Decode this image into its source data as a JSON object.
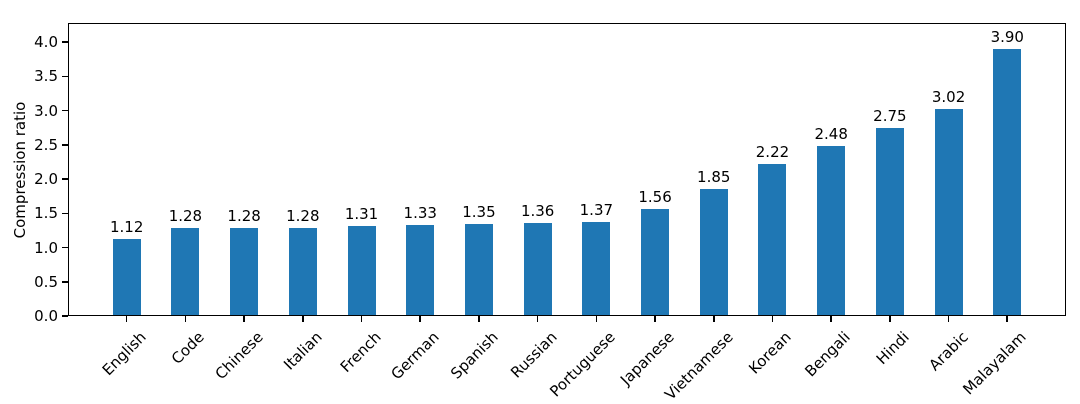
{
  "chart_data": {
    "type": "bar",
    "title": "",
    "xlabel": "",
    "ylabel": "Compression ratio",
    "categories": [
      "English",
      "Code",
      "Chinese",
      "Italian",
      "French",
      "German",
      "Spanish",
      "Russian",
      "Portuguese",
      "Japanese",
      "Vietnamese",
      "Korean",
      "Bengali",
      "Hindi",
      "Arabic",
      "Malayalam"
    ],
    "values": [
      1.12,
      1.28,
      1.28,
      1.28,
      1.31,
      1.33,
      1.35,
      1.36,
      1.37,
      1.56,
      1.85,
      2.22,
      2.48,
      2.75,
      3.02,
      3.9
    ],
    "value_labels": [
      "1.12",
      "1.28",
      "1.28",
      "1.28",
      "1.31",
      "1.33",
      "1.35",
      "1.36",
      "1.37",
      "1.56",
      "1.85",
      "2.22",
      "2.48",
      "2.75",
      "3.02",
      "3.90"
    ],
    "yticks": [
      0.0,
      0.5,
      1.0,
      1.5,
      2.0,
      2.5,
      3.0,
      3.5,
      4.0
    ],
    "ytick_labels": [
      "0.0",
      "0.5",
      "1.0",
      "1.5",
      "2.0",
      "2.5",
      "3.0",
      "3.5",
      "4.0"
    ],
    "ylim": [
      0,
      4.28
    ],
    "x_tick_rotation": 45,
    "grid": false,
    "legend": null,
    "bar_color": "#1f77b4",
    "text_color": "#000000",
    "spine_color": "#000000",
    "background_color": "#ffffff"
  }
}
